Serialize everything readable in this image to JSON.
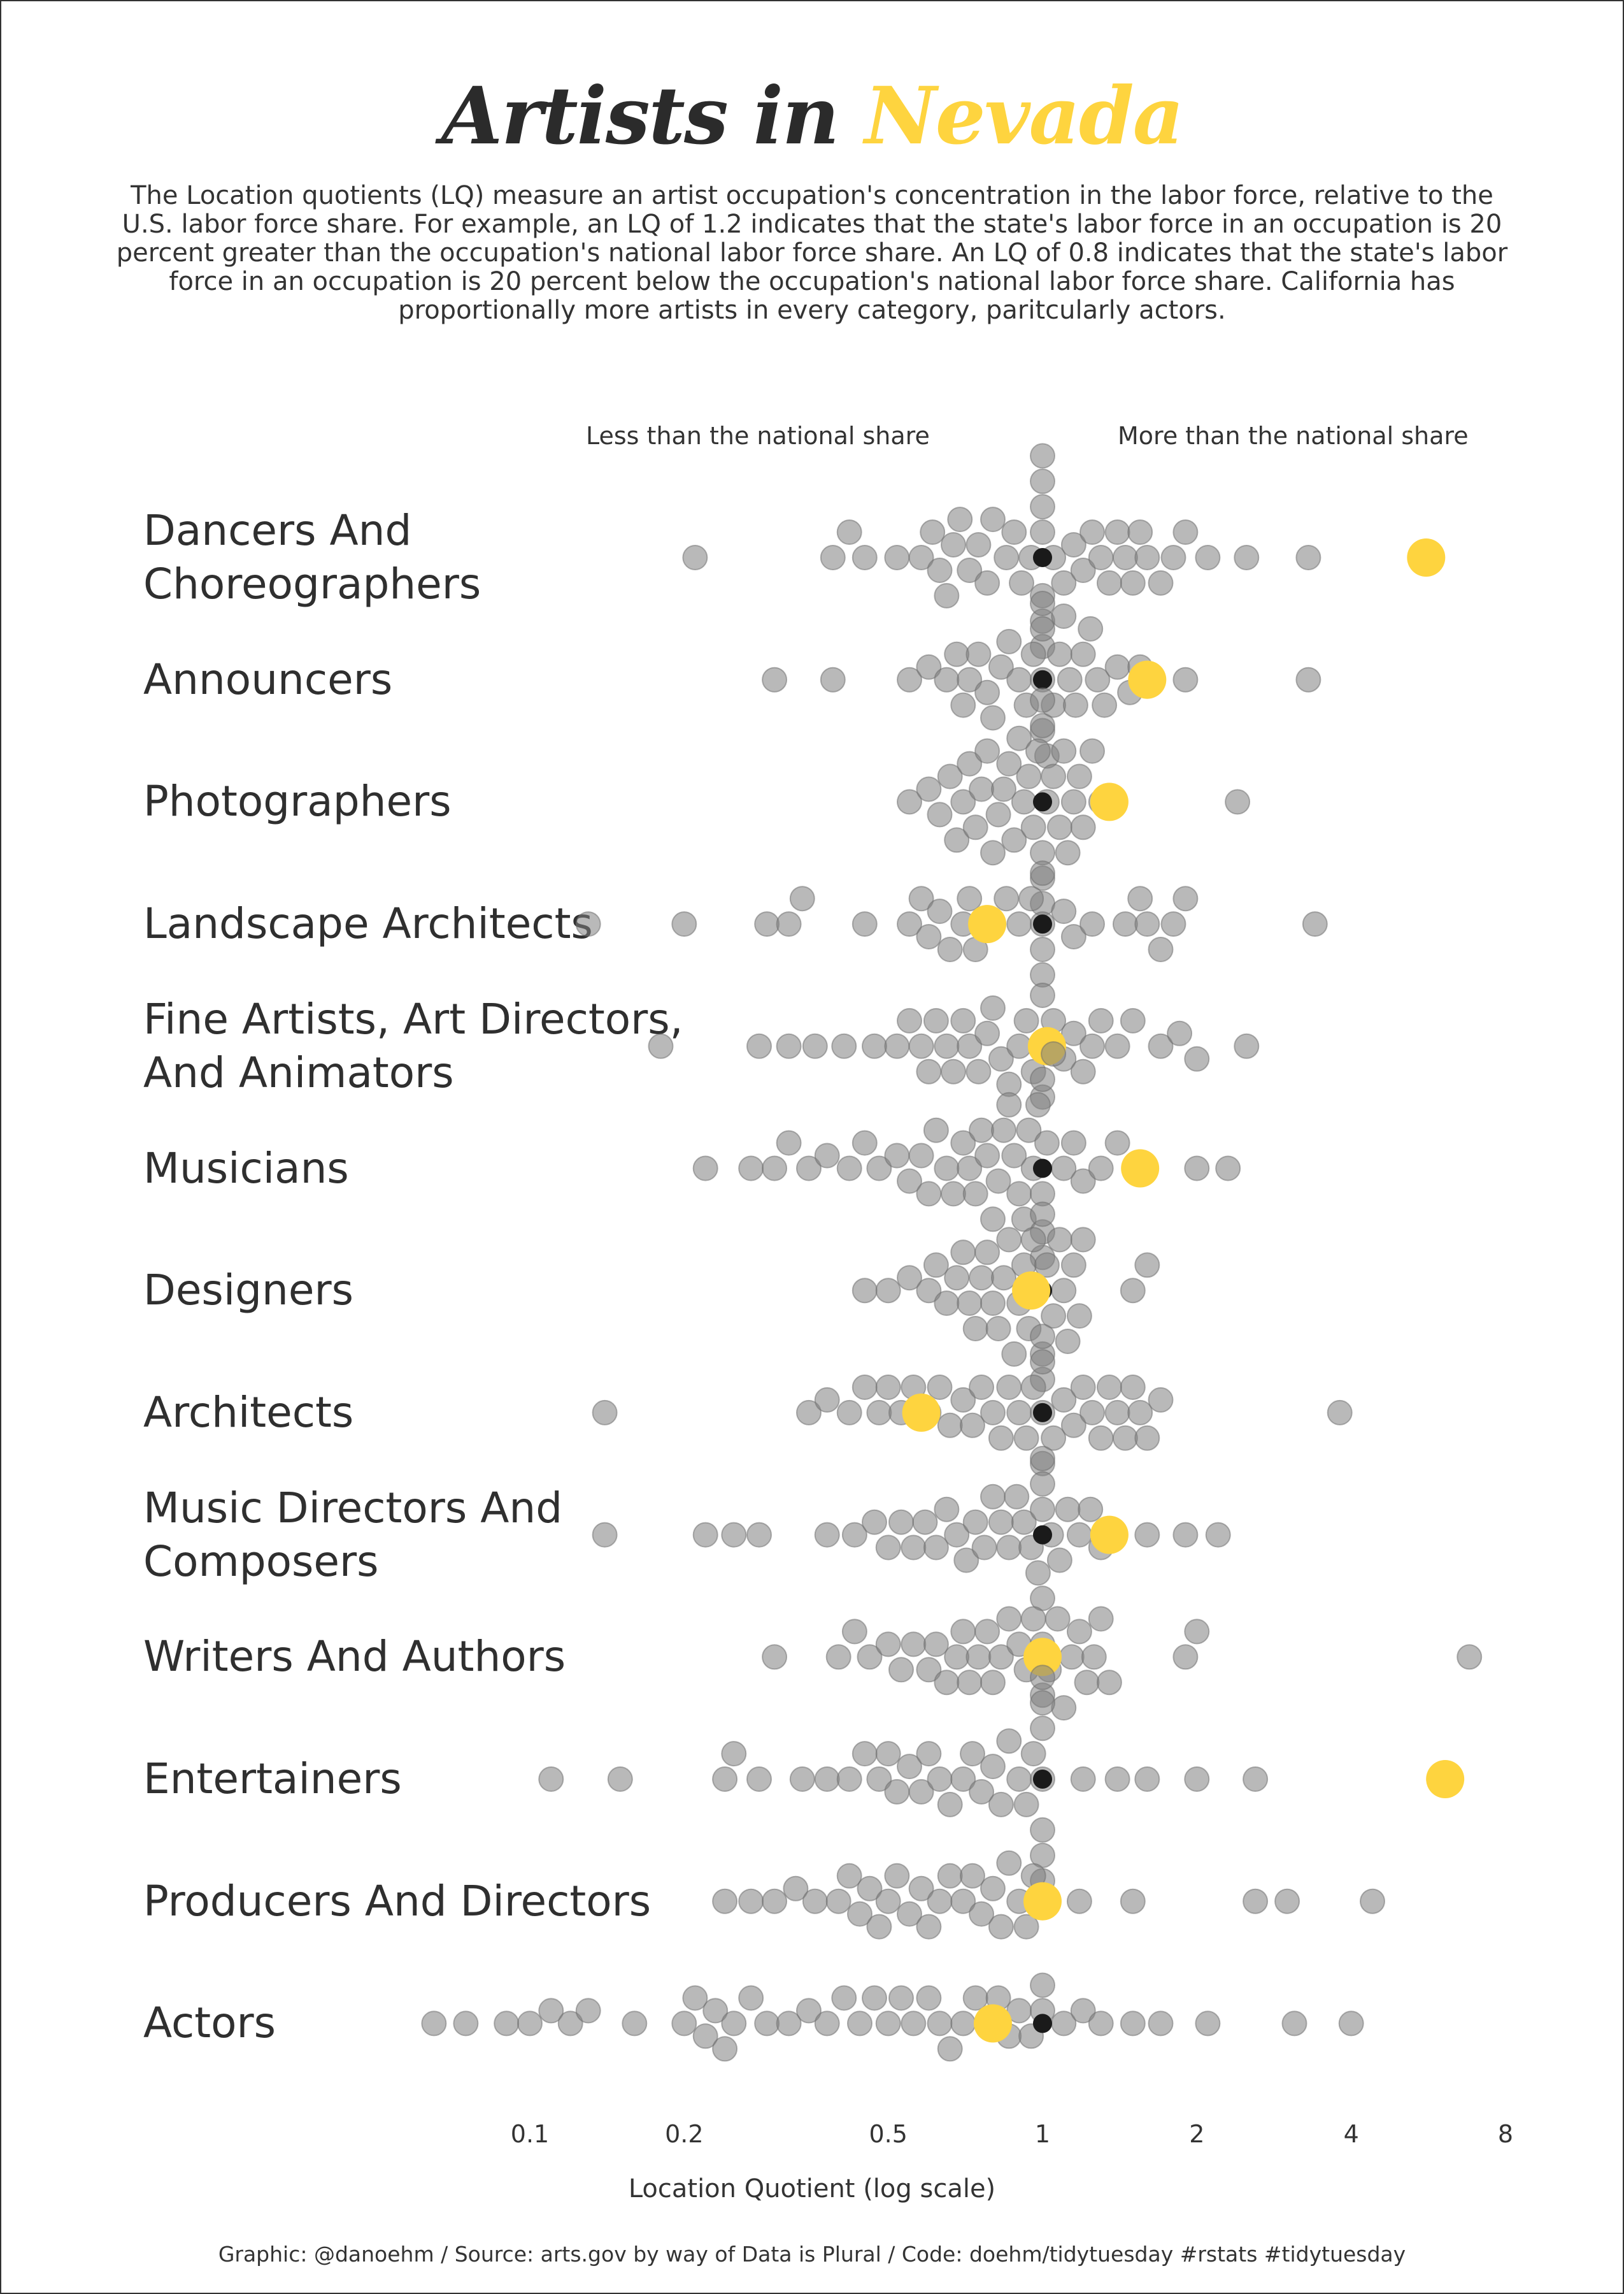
{
  "title": {
    "part1": "Artists in ",
    "part2": "Nevada"
  },
  "subtitle": "The Location quotients (LQ) measure an artist occupation's concentration in the labor force, relative to the U.S. labor force share. For example, an LQ of 1.2 indicates that the state's labor force in an occupation is 20 percent greater than the occupation's national labor force share. An LQ of 0.8 indicates that the state's labor force in an occupation is 20 percent below the occupation's national labor force share. California has proportionally more artists in every category, paritcularly actors.",
  "annotations": {
    "left": "Less than the national share",
    "right": "More than the national share"
  },
  "caption": "Graphic: @danoehm / Source: arts.gov by way of Data is Plural / Code: doehm/tidytuesday #rstats #tidytuesday",
  "colors": {
    "highlight": "#fed43f",
    "others": "#7f7f7f",
    "reference": "#1a1a1a",
    "text": "#2f2f2f"
  },
  "chart_data": {
    "type": "scatter",
    "subtype": "beeswarm",
    "xlabel": "Location Quotient (log scale)",
    "x_scale": "log",
    "xlim": [
      0.1,
      8
    ],
    "x_ticks": [
      "0.1",
      "0.2",
      "0.5",
      "1",
      "2",
      "4",
      "8"
    ],
    "x_tick_values": [
      0.1,
      0.2,
      0.5,
      1,
      2,
      4,
      8
    ],
    "highlight_state": "Nevada",
    "reference_value": 1,
    "categories": [
      {
        "label": "Dancers And Choreographers",
        "nevada": 5.6,
        "others": [
          0.21,
          0.39,
          0.42,
          0.45,
          0.52,
          0.58,
          0.61,
          0.63,
          0.65,
          0.67,
          0.69,
          0.72,
          0.75,
          0.78,
          0.8,
          0.85,
          0.88,
          0.91,
          0.95,
          1.0,
          1.0,
          1.0,
          1.0,
          1.0,
          1.0,
          1.0,
          1.05,
          1.1,
          1.15,
          1.2,
          1.25,
          1.3,
          1.35,
          1.4,
          1.45,
          1.5,
          1.55,
          1.6,
          1.7,
          1.8,
          1.9,
          2.1,
          2.5,
          3.3
        ]
      },
      {
        "label": "Announcers",
        "nevada": 1.6,
        "others": [
          0.3,
          0.39,
          0.55,
          0.6,
          0.65,
          0.68,
          0.7,
          0.72,
          0.75,
          0.78,
          0.8,
          0.83,
          0.86,
          0.9,
          0.93,
          0.96,
          1.0,
          1.0,
          1.0,
          1.0,
          1.02,
          1.05,
          1.08,
          1.1,
          1.13,
          1.16,
          1.2,
          1.24,
          1.28,
          1.32,
          1.4,
          1.48,
          1.55,
          1.9,
          3.3
        ]
      },
      {
        "label": "Photographers",
        "nevada": 1.35,
        "others": [
          0.55,
          0.6,
          0.63,
          0.66,
          0.68,
          0.7,
          0.72,
          0.74,
          0.76,
          0.78,
          0.8,
          0.82,
          0.84,
          0.86,
          0.88,
          0.9,
          0.92,
          0.94,
          0.96,
          0.98,
          1.0,
          1.0,
          1.0,
          1.0,
          1.0,
          1.02,
          1.05,
          1.08,
          1.1,
          1.12,
          1.15,
          1.18,
          1.2,
          1.25,
          1.3,
          2.4
        ]
      },
      {
        "label": "Landscape Architects",
        "nevada": 0.78,
        "others": [
          0.13,
          0.2,
          0.29,
          0.32,
          0.34,
          0.45,
          0.55,
          0.58,
          0.6,
          0.63,
          0.66,
          0.7,
          0.72,
          0.74,
          0.8,
          0.85,
          0.9,
          0.95,
          1.0,
          1.0,
          1.0,
          1.0,
          1.1,
          1.15,
          1.25,
          1.45,
          1.55,
          1.6,
          1.7,
          1.8,
          1.9,
          3.4
        ]
      },
      {
        "label": "Fine Artists, Art Directors, And Animators",
        "nevada": 1.02,
        "others": [
          0.18,
          0.28,
          0.32,
          0.36,
          0.41,
          0.47,
          0.52,
          0.55,
          0.58,
          0.6,
          0.62,
          0.65,
          0.67,
          0.7,
          0.72,
          0.75,
          0.78,
          0.8,
          0.83,
          0.86,
          0.9,
          0.93,
          0.96,
          1.0,
          1.0,
          1.0,
          1.05,
          1.1,
          1.15,
          1.2,
          1.25,
          1.3,
          1.4,
          1.5,
          1.7,
          1.85,
          2.0,
          2.5
        ]
      },
      {
        "label": "Musicians",
        "nevada": 1.55,
        "others": [
          0.22,
          0.27,
          0.3,
          0.32,
          0.35,
          0.38,
          0.42,
          0.45,
          0.48,
          0.52,
          0.55,
          0.58,
          0.6,
          0.62,
          0.65,
          0.67,
          0.7,
          0.72,
          0.74,
          0.76,
          0.78,
          0.8,
          0.82,
          0.84,
          0.86,
          0.88,
          0.9,
          0.92,
          0.94,
          0.96,
          0.98,
          1.0,
          1.0,
          1.0,
          1.0,
          1.02,
          1.05,
          1.1,
          1.15,
          1.2,
          1.3,
          1.4,
          1.55,
          2.0,
          2.3
        ]
      },
      {
        "label": "Designers",
        "nevada": 0.95,
        "others": [
          0.45,
          0.5,
          0.55,
          0.6,
          0.62,
          0.65,
          0.68,
          0.7,
          0.72,
          0.74,
          0.76,
          0.78,
          0.8,
          0.82,
          0.84,
          0.86,
          0.88,
          0.9,
          0.92,
          0.94,
          0.96,
          0.98,
          1.0,
          1.0,
          1.0,
          1.02,
          1.05,
          1.08,
          1.1,
          1.12,
          1.15,
          1.18,
          1.2,
          1.5,
          1.6
        ]
      },
      {
        "label": "Architects",
        "nevada": 0.58,
        "others": [
          0.14,
          0.35,
          0.38,
          0.42,
          0.45,
          0.48,
          0.5,
          0.53,
          0.56,
          0.6,
          0.63,
          0.66,
          0.7,
          0.73,
          0.76,
          0.8,
          0.83,
          0.86,
          0.9,
          0.93,
          0.96,
          1.0,
          1.0,
          1.0,
          1.0,
          1.05,
          1.1,
          1.15,
          1.2,
          1.25,
          1.3,
          1.35,
          1.4,
          1.45,
          1.5,
          1.55,
          1.6,
          1.7,
          3.8
        ]
      },
      {
        "label": "Music Directors And Composers",
        "nevada": 1.35,
        "others": [
          0.14,
          0.22,
          0.25,
          0.28,
          0.38,
          0.43,
          0.47,
          0.5,
          0.53,
          0.56,
          0.59,
          0.62,
          0.65,
          0.68,
          0.71,
          0.74,
          0.77,
          0.8,
          0.83,
          0.86,
          0.89,
          0.92,
          0.95,
          0.98,
          1.0,
          1.0,
          1.0,
          1.0,
          1.04,
          1.08,
          1.12,
          1.18,
          1.24,
          1.3,
          1.6,
          1.9,
          2.2
        ]
      },
      {
        "label": "Writers And Authors",
        "nevada": 1.0,
        "others": [
          0.3,
          0.4,
          0.43,
          0.46,
          0.5,
          0.53,
          0.56,
          0.6,
          0.62,
          0.65,
          0.68,
          0.7,
          0.72,
          0.75,
          0.78,
          0.8,
          0.83,
          0.86,
          0.9,
          0.93,
          0.96,
          1.0,
          1.0,
          1.03,
          1.07,
          1.1,
          1.14,
          1.18,
          1.22,
          1.26,
          1.3,
          1.35,
          1.9,
          2.0,
          6.8
        ]
      },
      {
        "label": "Entertainers",
        "nevada": 6.1,
        "others": [
          0.11,
          0.15,
          0.24,
          0.25,
          0.28,
          0.34,
          0.38,
          0.42,
          0.45,
          0.48,
          0.5,
          0.52,
          0.55,
          0.58,
          0.6,
          0.63,
          0.66,
          0.7,
          0.73,
          0.76,
          0.8,
          0.83,
          0.86,
          0.9,
          0.93,
          0.96,
          1.0,
          1.0,
          1.0,
          1.0,
          1.0,
          1.0,
          1.0,
          1.2,
          1.4,
          1.6,
          2.0,
          2.6
        ]
      },
      {
        "label": "Producers And Directors",
        "nevada": 1.0,
        "others": [
          0.24,
          0.27,
          0.3,
          0.33,
          0.36,
          0.4,
          0.42,
          0.44,
          0.46,
          0.48,
          0.5,
          0.52,
          0.55,
          0.58,
          0.6,
          0.63,
          0.66,
          0.7,
          0.73,
          0.76,
          0.8,
          0.83,
          0.86,
          0.9,
          0.93,
          0.96,
          1.18,
          1.5,
          2.6,
          3.0,
          4.4
        ]
      },
      {
        "label": "Actors",
        "nevada": 0.8,
        "others": [
          0.065,
          0.075,
          0.09,
          0.1,
          0.11,
          0.12,
          0.13,
          0.16,
          0.2,
          0.21,
          0.22,
          0.23,
          0.24,
          0.25,
          0.27,
          0.29,
          0.32,
          0.35,
          0.38,
          0.41,
          0.44,
          0.47,
          0.5,
          0.53,
          0.56,
          0.6,
          0.63,
          0.66,
          0.7,
          0.74,
          0.78,
          0.82,
          0.86,
          0.9,
          0.95,
          1.0,
          1.0,
          1.1,
          1.2,
          1.3,
          1.5,
          1.7,
          2.1,
          3.1,
          4.0
        ]
      }
    ]
  }
}
